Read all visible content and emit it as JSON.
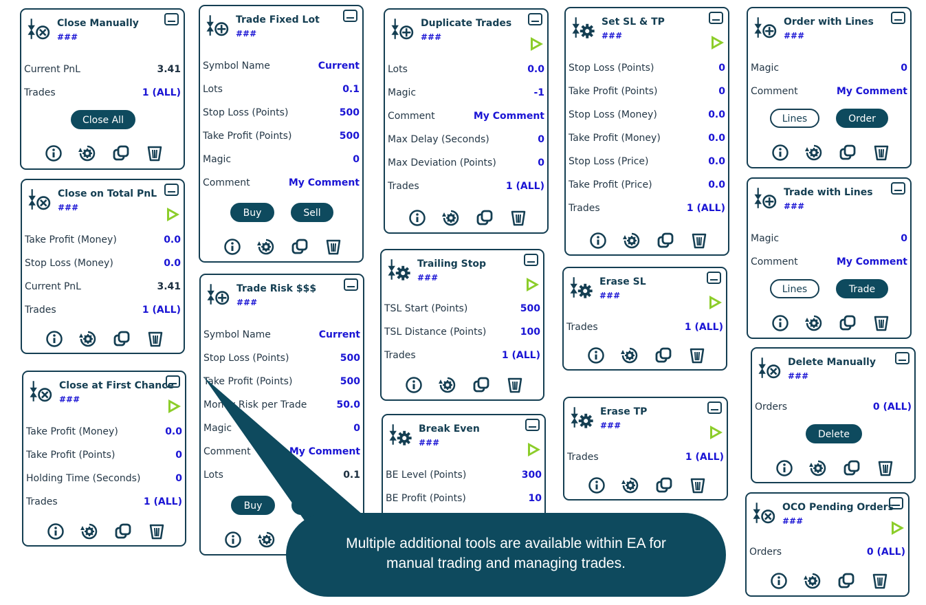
{
  "panel_id": "###",
  "colors": {
    "brand": "#0e4a5e",
    "value": "#1a14d4",
    "run": "#8ccd2a",
    "border": "#143e52"
  },
  "icons": {
    "info": "info-icon",
    "settings": "settings-icon",
    "duplicate": "duplicate-icon",
    "delete": "trash-icon",
    "run": "play-icon",
    "minimize": "minimize-icon"
  },
  "panels": {
    "close_manually": {
      "title": "Close Manually",
      "rows": [
        {
          "label": "Current PnL",
          "value": "3.41"
        },
        {
          "label": "Trades",
          "value": "1 (ALL)"
        }
      ],
      "button": "Close All"
    },
    "close_total_pnl": {
      "title": "Close on Total PnL",
      "rows": [
        {
          "label": "Take Profit (Money)",
          "value": "0.0"
        },
        {
          "label": "Stop Loss (Money)",
          "value": "0.0"
        },
        {
          "label": "Current PnL",
          "value": "3.41"
        },
        {
          "label": "Trades",
          "value": "1 (ALL)"
        }
      ]
    },
    "close_first_chance": {
      "title": "Close at First Chance",
      "rows": [
        {
          "label": "Take Profit (Money)",
          "value": "0.0"
        },
        {
          "label": "Take Profit (Points)",
          "value": "0"
        },
        {
          "label": "Holding Time (Seconds)",
          "value": "0"
        },
        {
          "label": "Trades",
          "value": "1 (ALL)"
        }
      ]
    },
    "trade_fixed_lot": {
      "title": "Trade Fixed Lot",
      "rows": [
        {
          "label": "Symbol Name",
          "value": "Current"
        },
        {
          "label": "Lots",
          "value": "0.1"
        },
        {
          "label": "Stop Loss (Points)",
          "value": "500"
        },
        {
          "label": "Take Profit (Points)",
          "value": "500"
        },
        {
          "label": "Magic",
          "value": "0"
        },
        {
          "label": "Comment",
          "value": "My Comment"
        }
      ],
      "buy": "Buy",
      "sell": "Sell"
    },
    "trade_risk": {
      "title": "Trade Risk $$$",
      "rows": [
        {
          "label": "Symbol Name",
          "value": "Current"
        },
        {
          "label": "Stop Loss (Points)",
          "value": "500"
        },
        {
          "label": "Take Profit (Points)",
          "value": "500"
        },
        {
          "label": "Money Risk per Trade",
          "value": "50.0"
        },
        {
          "label": "Magic",
          "value": "0"
        },
        {
          "label": "Comment",
          "value": "My Comment"
        },
        {
          "label": "Lots",
          "value": "0.1"
        }
      ],
      "buy": "Buy"
    },
    "duplicate_trades": {
      "title": "Duplicate Trades",
      "rows": [
        {
          "label": "Lots",
          "value": "0.0"
        },
        {
          "label": "Magic",
          "value": "-1"
        },
        {
          "label": "Comment",
          "value": "My Comment"
        },
        {
          "label": "Max Delay (Seconds)",
          "value": "0"
        },
        {
          "label": "Max Deviation (Points)",
          "value": "0"
        },
        {
          "label": "Trades",
          "value": "1 (ALL)"
        }
      ]
    },
    "trailing_stop": {
      "title": "Trailing Stop",
      "rows": [
        {
          "label": "TSL Start (Points)",
          "value": "500"
        },
        {
          "label": "TSL Distance (Points)",
          "value": "100"
        },
        {
          "label": "Trades",
          "value": "1 (ALL)"
        }
      ]
    },
    "break_even": {
      "title": "Break Even",
      "rows": [
        {
          "label": "BE Level (Points)",
          "value": "300"
        },
        {
          "label": "BE Profit (Points)",
          "value": "10"
        }
      ]
    },
    "set_sl_tp": {
      "title": "Set SL & TP",
      "rows": [
        {
          "label": "Stop Loss (Points)",
          "value": "0"
        },
        {
          "label": "Take Profit (Points)",
          "value": "0"
        },
        {
          "label": "Stop Loss (Money)",
          "value": "0.0"
        },
        {
          "label": "Take Profit (Money)",
          "value": "0.0"
        },
        {
          "label": "Stop Loss (Price)",
          "value": "0.0"
        },
        {
          "label": "Take Profit (Price)",
          "value": "0.0"
        },
        {
          "label": "Trades",
          "value": "1 (ALL)"
        }
      ]
    },
    "erase_sl": {
      "title": "Erase SL",
      "rows": [
        {
          "label": "Trades",
          "value": "1 (ALL)"
        }
      ]
    },
    "erase_tp": {
      "title": "Erase TP",
      "rows": [
        {
          "label": "Trades",
          "value": "1 (ALL)"
        }
      ]
    },
    "order_with_lines": {
      "title": "Order with Lines",
      "rows": [
        {
          "label": "Magic",
          "value": "0"
        },
        {
          "label": "Comment",
          "value": "My Comment"
        }
      ],
      "lines": "Lines",
      "action": "Order"
    },
    "trade_with_lines": {
      "title": "Trade with Lines",
      "rows": [
        {
          "label": "Magic",
          "value": "0"
        },
        {
          "label": "Comment",
          "value": "My Comment"
        }
      ],
      "lines": "Lines",
      "action": "Trade"
    },
    "delete_manually": {
      "title": "Delete Manually",
      "rows": [
        {
          "label": "Orders",
          "value": "0 (ALL)"
        }
      ],
      "button": "Delete"
    },
    "oco_pending": {
      "title": "OCO Pending Orders",
      "rows": [
        {
          "label": "Orders",
          "value": "0 (ALL)"
        }
      ]
    }
  },
  "callout": {
    "line1": "Multiple additional tools are available within EA for",
    "line2": "manual trading and managing trades."
  }
}
